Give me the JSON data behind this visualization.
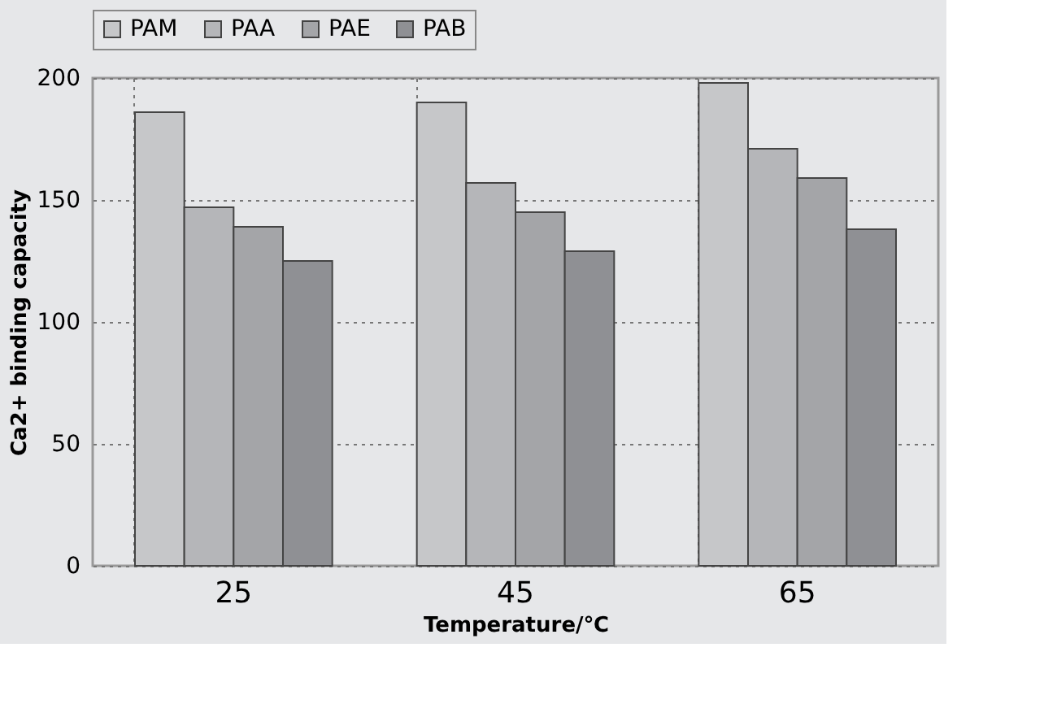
{
  "chart_data": {
    "type": "bar",
    "xlabel": "Temperature/℃",
    "ylabel": "Ca2+  binding  capacity",
    "categories": [
      "25",
      "45",
      "65"
    ],
    "series": [
      {
        "name": "PAM",
        "color": "#c6c7c9",
        "values": [
          186,
          190,
          198
        ]
      },
      {
        "name": "PAA",
        "color": "#b5b6b9",
        "values": [
          147,
          157,
          171
        ]
      },
      {
        "name": "PAE",
        "color": "#a4a5a8",
        "values": [
          139,
          145,
          159
        ]
      },
      {
        "name": "PAB",
        "color": "#8f9094",
        "values": [
          125,
          129,
          138
        ]
      }
    ],
    "ylim": [
      0,
      200
    ],
    "yticks": [
      0,
      50,
      100,
      150,
      200
    ],
    "grid": true,
    "legend": "top"
  }
}
